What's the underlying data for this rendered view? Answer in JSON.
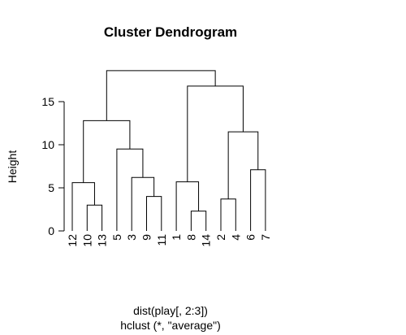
{
  "chart_data": {
    "type": "dendrogram",
    "title": "Cluster Dendrogram",
    "xlabel_lines": [
      "dist(play[, 2:3])",
      "hclust (*, \"average\")"
    ],
    "ylabel": "Height",
    "ylim": [
      0,
      19
    ],
    "yticks": [
      0,
      5,
      10,
      15
    ],
    "leaves": [
      "12",
      "10",
      "13",
      "5",
      "3",
      "9",
      "11",
      "1",
      "8",
      "14",
      "2",
      "4",
      "6",
      "7"
    ],
    "leaf_heights": [
      0,
      0,
      0,
      0,
      0,
      0,
      0,
      0,
      0,
      0,
      0,
      0,
      0,
      0
    ],
    "merges": [
      {
        "left": "l:10",
        "right": "l:13",
        "height": 3.0
      },
      {
        "left": "l:9",
        "right": "l:11",
        "height": 4.0
      },
      {
        "left": "l:8",
        "right": "l:14",
        "height": 2.3
      },
      {
        "left": "l:2",
        "right": "l:4",
        "height": 3.7
      },
      {
        "left": "l:6",
        "right": "l:7",
        "height": 7.1
      },
      {
        "left": "l:12",
        "right": "m:0",
        "height": 5.6
      },
      {
        "left": "l:3",
        "right": "m:1",
        "height": 6.2
      },
      {
        "left": "l:5",
        "right": "m:6",
        "height": 9.5
      },
      {
        "left": "m:5",
        "right": "m:7",
        "height": 12.8
      },
      {
        "left": "l:1",
        "right": "m:2",
        "height": 5.7
      },
      {
        "left": "m:3",
        "right": "m:4",
        "height": 11.5
      },
      {
        "left": "m:9",
        "right": "m:10",
        "height": 16.8
      },
      {
        "left": "m:8",
        "right": "m:11",
        "height": 18.6
      }
    ]
  }
}
